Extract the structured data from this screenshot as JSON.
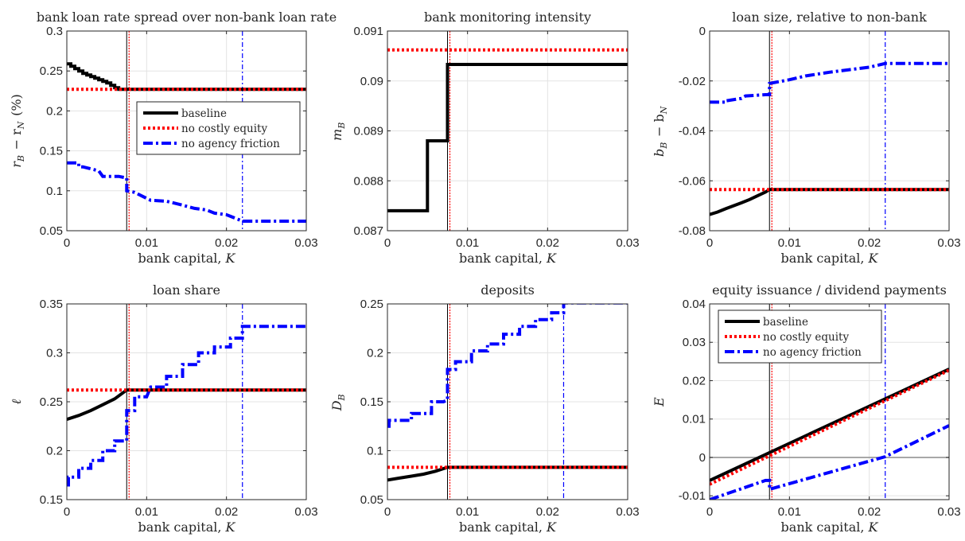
{
  "figure": {
    "legend_labels": [
      "baseline",
      "no costly equity",
      "no agency friction"
    ],
    "colors": {
      "baseline": "#000000",
      "no_costly_equity": "#ff0000",
      "no_agency_friction": "#0000ff"
    }
  },
  "chart_data": [
    {
      "type": "line",
      "title": "bank loan rate spread over non-bank loan rate",
      "xlabel": "bank capital, K",
      "ylabel": "r_B − r_N (%)",
      "xlim": [
        0,
        0.03
      ],
      "ylim": [
        0.05,
        0.3
      ],
      "xticks": [
        "0",
        "0.01",
        "0.02",
        "0.03"
      ],
      "yticks": [
        "0.05",
        "0.1",
        "0.15",
        "0.2",
        "0.25",
        "0.3"
      ],
      "grid": true,
      "legend": "center-right",
      "vlines": {
        "black": 0.0075,
        "red": 0.0076,
        "blue": 0.022
      },
      "series": [
        {
          "name": "baseline",
          "x": [
            0,
            0.0005,
            0.0005,
            0.001,
            0.001,
            0.0015,
            0.0015,
            0.002,
            0.002,
            0.0025,
            0.0025,
            0.003,
            0.003,
            0.0035,
            0.0035,
            0.004,
            0.004,
            0.0045,
            0.0045,
            0.005,
            0.005,
            0.0055,
            0.0055,
            0.006,
            0.006,
            0.0065,
            0.0065,
            0.0075,
            0.03
          ],
          "y": [
            0.259,
            0.259,
            0.256,
            0.256,
            0.253,
            0.253,
            0.25,
            0.25,
            0.247,
            0.247,
            0.245,
            0.245,
            0.243,
            0.243,
            0.241,
            0.241,
            0.239,
            0.239,
            0.237,
            0.237,
            0.235,
            0.235,
            0.232,
            0.232,
            0.229,
            0.229,
            0.227,
            0.227,
            0.227
          ]
        },
        {
          "name": "no costly equity",
          "x": [
            0,
            0.03
          ],
          "y": [
            0.227,
            0.227
          ]
        },
        {
          "name": "no agency friction",
          "x": [
            0,
            0.0015,
            0.0015,
            0.002,
            0.004,
            0.0045,
            0.0065,
            0.0075,
            0.0075,
            0.0085,
            0.0095,
            0.0105,
            0.0125,
            0.0145,
            0.016,
            0.0175,
            0.0185,
            0.02,
            0.0205,
            0.021,
            0.0215,
            0.022,
            0.03
          ],
          "y": [
            0.135,
            0.135,
            0.13,
            0.13,
            0.125,
            0.118,
            0.118,
            0.116,
            0.1,
            0.098,
            0.093,
            0.088,
            0.087,
            0.082,
            0.078,
            0.076,
            0.072,
            0.07,
            0.068,
            0.066,
            0.064,
            0.062,
            0.062
          ]
        }
      ]
    },
    {
      "type": "line",
      "title": "bank monitoring intensity",
      "xlabel": "bank capital, K",
      "ylabel": "m_B",
      "xlim": [
        0,
        0.03
      ],
      "ylim": [
        0.087,
        0.091
      ],
      "xticks": [
        "0",
        "0.01",
        "0.02",
        "0.03"
      ],
      "yticks": [
        "0.087",
        "0.088",
        "0.089",
        "0.09",
        "0.091"
      ],
      "grid": true,
      "vlines": {
        "black": 0.0075,
        "red": 0.0076
      },
      "series": [
        {
          "name": "baseline",
          "x": [
            0,
            0.005,
            0.005,
            0.0075,
            0.0075,
            0.03
          ],
          "y": [
            0.0874,
            0.0874,
            0.0888,
            0.0888,
            0.09033,
            0.09033
          ]
        },
        {
          "name": "no costly equity",
          "x": [
            0,
            0.03
          ],
          "y": [
            0.09062,
            0.09062
          ]
        }
      ]
    },
    {
      "type": "line",
      "title": "loan size, relative to non-bank",
      "xlabel": "bank capital, K",
      "ylabel": "b_B − b_N",
      "xlim": [
        0,
        0.03
      ],
      "ylim": [
        -0.08,
        0
      ],
      "xticks": [
        "0",
        "0.01",
        "0.02",
        "0.03"
      ],
      "yticks": [
        "-0.08",
        "-0.06",
        "-0.04",
        "-0.02",
        "0"
      ],
      "grid": true,
      "vlines": {
        "black": 0.0075,
        "red": 0.0076,
        "blue": 0.022
      },
      "series": [
        {
          "name": "baseline",
          "x": [
            0,
            0.001,
            0.002,
            0.003,
            0.004,
            0.005,
            0.006,
            0.007,
            0.0075,
            0.03
          ],
          "y": [
            -0.0735,
            -0.0725,
            -0.0712,
            -0.07,
            -0.0688,
            -0.0675,
            -0.066,
            -0.0645,
            -0.0635,
            -0.0635
          ]
        },
        {
          "name": "no costly equity",
          "x": [
            0,
            0.03
          ],
          "y": [
            -0.0635,
            -0.0635
          ]
        },
        {
          "name": "no agency friction",
          "x": [
            0,
            0.002,
            0.002,
            0.004,
            0.0045,
            0.007,
            0.0075,
            0.0075,
            0.01,
            0.012,
            0.015,
            0.0175,
            0.02,
            0.022,
            0.03
          ],
          "y": [
            -0.0285,
            -0.0285,
            -0.028,
            -0.027,
            -0.026,
            -0.0255,
            -0.0255,
            -0.021,
            -0.0195,
            -0.018,
            -0.0165,
            -0.0155,
            -0.0145,
            -0.013,
            -0.013
          ]
        }
      ]
    },
    {
      "type": "line",
      "title": "loan share",
      "xlabel": "bank capital, K",
      "ylabel": "ℓ",
      "xlim": [
        0,
        0.03
      ],
      "ylim": [
        0.15,
        0.35
      ],
      "xticks": [
        "0",
        "0.01",
        "0.02",
        "0.03"
      ],
      "yticks": [
        "0.15",
        "0.2",
        "0.25",
        "0.3",
        "0.35"
      ],
      "grid": true,
      "vlines": {
        "black": 0.0075,
        "red": 0.0076,
        "blue": 0.022
      },
      "series": [
        {
          "name": "baseline",
          "x": [
            0,
            0.0015,
            0.003,
            0.0045,
            0.006,
            0.0075,
            0.03
          ],
          "y": [
            0.232,
            0.236,
            0.241,
            0.247,
            0.253,
            0.262,
            0.262
          ]
        },
        {
          "name": "no costly equity",
          "x": [
            0,
            0.03
          ],
          "y": [
            0.262,
            0.262
          ]
        },
        {
          "name": "no agency friction",
          "x": [
            0,
            0.0002,
            0.0002,
            0.0015,
            0.0015,
            0.003,
            0.003,
            0.0045,
            0.0045,
            0.006,
            0.006,
            0.0075,
            0.0075,
            0.0085,
            0.0085,
            0.01,
            0.0105,
            0.0125,
            0.0125,
            0.0145,
            0.0145,
            0.0165,
            0.0165,
            0.0185,
            0.0185,
            0.0205,
            0.0205,
            0.022,
            0.022,
            0.03
          ],
          "y": [
            0.165,
            0.165,
            0.173,
            0.173,
            0.182,
            0.182,
            0.19,
            0.19,
            0.2,
            0.2,
            0.21,
            0.21,
            0.241,
            0.241,
            0.255,
            0.255,
            0.265,
            0.265,
            0.276,
            0.276,
            0.288,
            0.288,
            0.3,
            0.3,
            0.306,
            0.306,
            0.315,
            0.315,
            0.327,
            0.327
          ]
        }
      ]
    },
    {
      "type": "line",
      "title": "deposits",
      "xlabel": "bank capital, K",
      "ylabel": "D_B",
      "xlim": [
        0,
        0.03
      ],
      "ylim": [
        0.05,
        0.25
      ],
      "xticks": [
        "0",
        "0.01",
        "0.02",
        "0.03"
      ],
      "yticks": [
        "0.05",
        "0.1",
        "0.15",
        "0.2",
        "0.25"
      ],
      "grid": true,
      "vlines": {
        "black": 0.0075,
        "red": 0.0076,
        "blue": 0.022
      },
      "series": [
        {
          "name": "baseline",
          "x": [
            0,
            0.0015,
            0.003,
            0.0045,
            0.006,
            0.0075,
            0.03
          ],
          "y": [
            0.07,
            0.072,
            0.074,
            0.076,
            0.079,
            0.083,
            0.083
          ]
        },
        {
          "name": "no costly equity",
          "x": [
            0,
            0.03
          ],
          "y": [
            0.083,
            0.083
          ]
        },
        {
          "name": "no agency friction",
          "x": [
            0,
            0.0002,
            0.0002,
            0.003,
            0.003,
            0.0055,
            0.0055,
            0.007,
            0.0075,
            0.0075,
            0.0085,
            0.0085,
            0.0105,
            0.0105,
            0.0125,
            0.0125,
            0.0145,
            0.0145,
            0.0165,
            0.0165,
            0.0185,
            0.0185,
            0.0205,
            0.0205,
            0.022,
            0.022,
            0.03
          ],
          "y": [
            0.125,
            0.125,
            0.131,
            0.131,
            0.138,
            0.138,
            0.15,
            0.15,
            0.152,
            0.183,
            0.183,
            0.191,
            0.191,
            0.202,
            0.202,
            0.209,
            0.209,
            0.219,
            0.219,
            0.227,
            0.227,
            0.234,
            0.234,
            0.241,
            0.241,
            0.251,
            0.251
          ]
        }
      ]
    },
    {
      "type": "line",
      "title": "equity issuance / dividend payments",
      "xlabel": "bank capital, K",
      "ylabel": "E",
      "xlim": [
        0,
        0.03
      ],
      "ylim": [
        -0.011,
        0.04
      ],
      "xticks": [
        "0",
        "0.01",
        "0.02",
        "0.03"
      ],
      "yticks": [
        "-0.01",
        "0",
        "0.01",
        "0.02",
        "0.03",
        "0.04"
      ],
      "grid": true,
      "legend": "top-left",
      "vlines": {
        "black": 0.0075,
        "red": 0.0076,
        "blue": 0.022
      },
      "hline": 0,
      "series": [
        {
          "name": "baseline",
          "x": [
            0,
            0.03
          ],
          "y": [
            -0.006,
            0.023
          ]
        },
        {
          "name": "no costly equity",
          "x": [
            0,
            0.03
          ],
          "y": [
            -0.007,
            0.0227
          ]
        },
        {
          "name": "no agency friction",
          "x": [
            0,
            0.007,
            0.0075,
            0.0075,
            0.022,
            0.03
          ],
          "y": [
            -0.011,
            -0.006,
            -0.006,
            -0.0083,
            0.0002,
            0.0083
          ]
        }
      ]
    }
  ]
}
